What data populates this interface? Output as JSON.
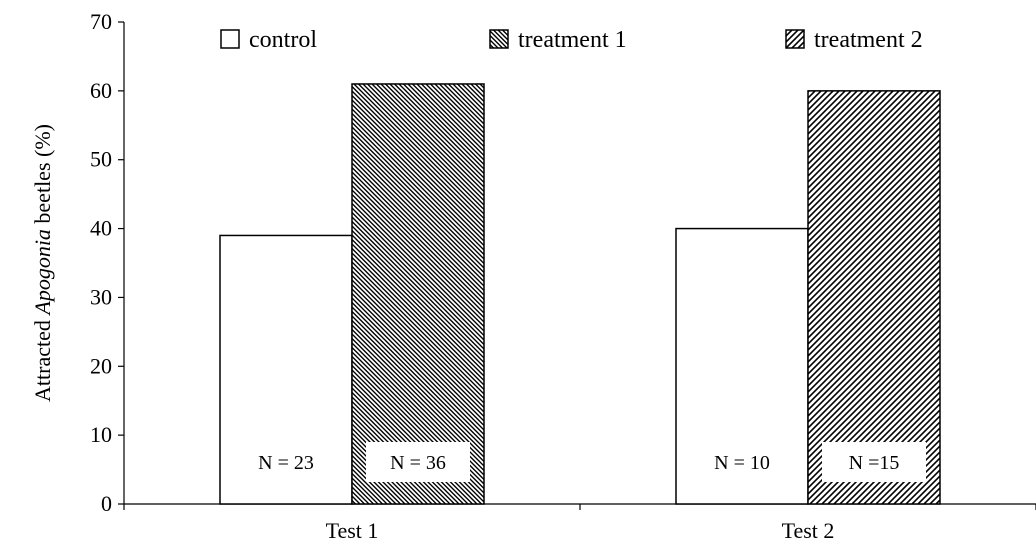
{
  "chart_data": {
    "type": "bar",
    "categories": [
      "Test 1",
      "Test 2"
    ],
    "series": [
      {
        "name": "control",
        "values": [
          39,
          40
        ],
        "pattern": "none"
      },
      {
        "name": "treatment 1",
        "values": [
          61,
          null
        ],
        "pattern": "dense-diagonal"
      },
      {
        "name": "treatment 2",
        "values": [
          null,
          60
        ],
        "pattern": "diagonal"
      }
    ],
    "annotations": [
      {
        "text": "N = 23",
        "category": "Test 1",
        "series": "control"
      },
      {
        "text": "N = 36",
        "category": "Test 1",
        "series": "treatment 1"
      },
      {
        "text": "N = 10",
        "category": "Test 2",
        "series": "control"
      },
      {
        "text": "N =15",
        "category": "Test 2",
        "series": "treatment 2"
      }
    ],
    "ylabel_prefix": "Attracted ",
    "ylabel_italic": "Apogonia",
    "ylabel_suffix": " beetles (%)",
    "xlabel": "",
    "ylim": [
      0,
      70
    ],
    "yticks": [
      0,
      10,
      20,
      30,
      40,
      50,
      60,
      70
    ],
    "grid": false,
    "legend_position": "top",
    "colors": {
      "stroke": "#000000",
      "fill": "#ffffff"
    }
  }
}
